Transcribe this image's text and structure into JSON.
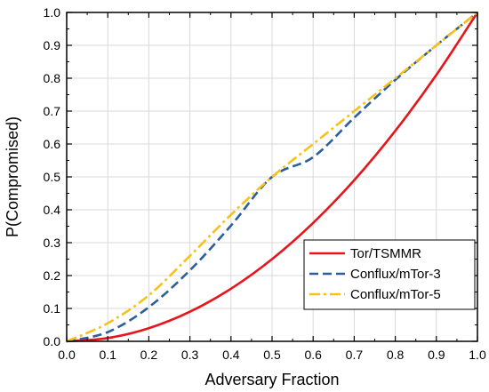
{
  "chart_data": {
    "type": "line",
    "xlabel": "Adversary Fraction",
    "ylabel": "P(Compromised)",
    "xlim": [
      0.0,
      1.0
    ],
    "ylim": [
      0.0,
      1.0
    ],
    "xticks": [
      "0.0",
      "0.1",
      "0.2",
      "0.3",
      "0.4",
      "0.5",
      "0.6",
      "0.7",
      "0.8",
      "0.9",
      "1.0"
    ],
    "yticks": [
      "0.0",
      "0.1",
      "0.2",
      "0.3",
      "0.4",
      "0.5",
      "0.6",
      "0.7",
      "0.8",
      "0.9",
      "1.0"
    ],
    "grid": true,
    "legend_position": "bottom-right",
    "x": [
      0.0,
      0.1,
      0.2,
      0.3,
      0.4,
      0.5,
      0.6,
      0.7,
      0.8,
      0.9,
      1.0
    ],
    "series": [
      {
        "name": "Tor/TSMMR",
        "color": "#e8141c",
        "style": "solid",
        "values": [
          0.0,
          0.01,
          0.04,
          0.09,
          0.16,
          0.25,
          0.36,
          0.49,
          0.64,
          0.81,
          1.0
        ]
      },
      {
        "name": "Conflux/mTor-3",
        "color": "#2b5f9b",
        "style": "dash",
        "values": [
          0.0,
          0.028,
          0.104,
          0.216,
          0.352,
          0.5,
          0.56,
          0.68,
          0.795,
          0.9,
          1.0
        ]
      },
      {
        "name": "Conflux/mTor-5",
        "color": "#f4c21a",
        "style": "dashdot",
        "values": [
          0.0,
          0.055,
          0.14,
          0.26,
          0.385,
          0.5,
          0.6,
          0.7,
          0.8,
          0.9,
          1.0
        ]
      }
    ]
  }
}
